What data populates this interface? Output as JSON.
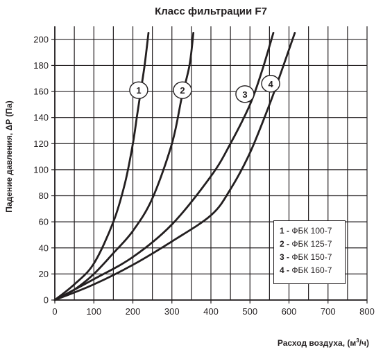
{
  "chart_data": {
    "type": "line",
    "title": "Класс фильтрации F7",
    "ylabel": "Падение давления, ΔР (Па)",
    "xlabel_parts": [
      "Расход воздуха, (м",
      "3",
      "/ч)"
    ],
    "xlim": [
      0,
      800
    ],
    "ylim": [
      0,
      210
    ],
    "x_ticks": [
      0,
      100,
      200,
      300,
      400,
      500,
      600,
      700,
      800
    ],
    "y_ticks": [
      0,
      20,
      40,
      60,
      80,
      100,
      120,
      140,
      160,
      180,
      200
    ],
    "x_grid": [
      0,
      50,
      100,
      150,
      200,
      250,
      300,
      350,
      400,
      450,
      500,
      550,
      600,
      650,
      700,
      750,
      800
    ],
    "grid": true,
    "legend_position": "bottom-right",
    "series": [
      {
        "name": "ФБК 100-7",
        "number": "1",
        "x": [
          0,
          50,
          100,
          150,
          180,
          200,
          210,
          220,
          230,
          240
        ],
        "y": [
          0,
          12,
          28,
          60,
          90,
          120,
          140,
          160,
          180,
          205
        ],
        "marker": {
          "label": "1",
          "x": 215,
          "y": 161
        }
      },
      {
        "name": "ФБК 125-7",
        "number": "2",
        "x": [
          0,
          50,
          100,
          150,
          200,
          250,
          300,
          325,
          345,
          355
        ],
        "y": [
          0,
          8,
          20,
          36,
          53,
          78,
          120,
          155,
          180,
          205
        ],
        "marker": {
          "label": "2",
          "x": 327,
          "y": 161
        }
      },
      {
        "name": "ФБК 150-7",
        "number": "3",
        "x": [
          0,
          100,
          200,
          300,
          400,
          450,
          500,
          530,
          560
        ],
        "y": [
          0,
          16,
          33,
          58,
          95,
          120,
          150,
          175,
          205
        ],
        "marker": {
          "label": "3",
          "x": 487,
          "y": 158
        }
      },
      {
        "name": "ФБК 160-7",
        "number": "4",
        "x": [
          0,
          100,
          200,
          300,
          400,
          450,
          500,
          550,
          580,
          615
        ],
        "y": [
          0,
          12,
          27,
          45,
          65,
          85,
          113,
          150,
          175,
          205
        ],
        "marker": {
          "label": "4",
          "x": 553,
          "y": 166
        }
      }
    ]
  }
}
